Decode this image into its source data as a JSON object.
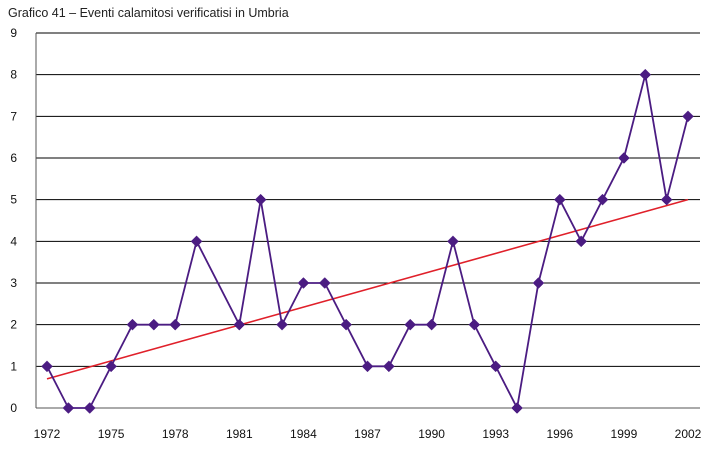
{
  "chart_data": {
    "type": "line",
    "title": "Grafico 41 – Eventi calamitosi verificatisi in Umbria",
    "xlabel": "",
    "ylabel": "",
    "x": [
      1972,
      1973,
      1974,
      1975,
      1976,
      1977,
      1978,
      1979,
      1981,
      1982,
      1983,
      1984,
      1985,
      1986,
      1987,
      1988,
      1989,
      1990,
      1991,
      1992,
      1993,
      1994,
      1995,
      1996,
      1997,
      1998,
      1999,
      2000,
      2001,
      2002
    ],
    "series": [
      {
        "values": [
          1,
          0,
          0,
          1,
          2,
          2,
          2,
          4,
          2,
          5,
          2,
          3,
          3,
          2,
          1,
          1,
          2,
          2,
          4,
          2,
          1,
          0,
          3,
          5,
          4,
          5,
          6,
          8,
          5,
          7
        ]
      }
    ],
    "trendline": {
      "from": [
        1972,
        0.7
      ],
      "to": [
        2002,
        5.0
      ]
    },
    "x_ticks": [
      1972,
      1975,
      1978,
      1981,
      1984,
      1987,
      1990,
      1993,
      1996,
      1999,
      2002
    ],
    "y_ticks": [
      0,
      1,
      2,
      3,
      4,
      5,
      6,
      7,
      8,
      9
    ],
    "xlim": [
      1972,
      2002
    ],
    "ylim": [
      0,
      9
    ],
    "grid": "horizontal",
    "legend": "none",
    "colors": {
      "series": "#4B1C82",
      "trend": "#E0202A",
      "grid": "#000000",
      "axis": "#555555"
    }
  }
}
